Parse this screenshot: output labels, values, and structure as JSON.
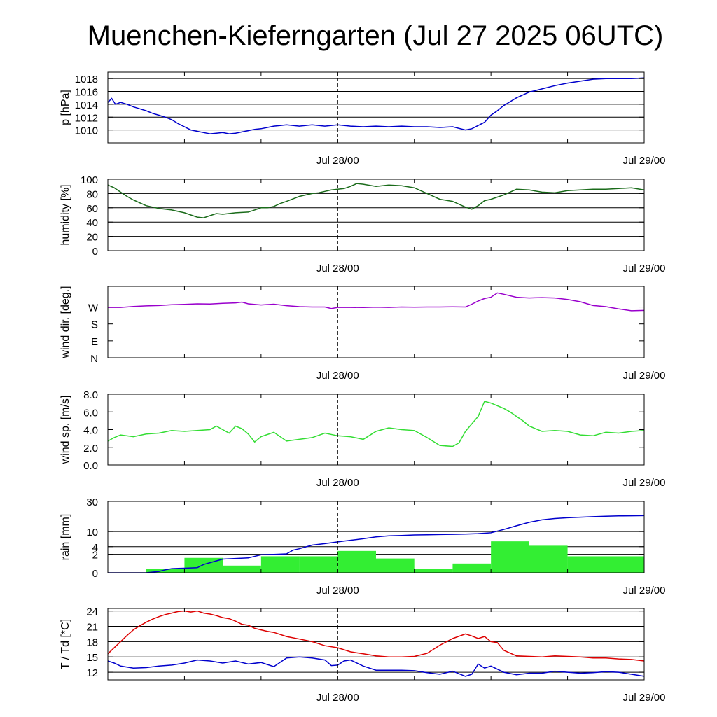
{
  "title": "Muenchen-Kieferngarten (Jul 27 2025 06UTC)",
  "x_tick_labels": [
    "Jul 28/00",
    "Jul 29/00"
  ],
  "x_ticks_hours": [
    18,
    42
  ],
  "x_range_hours": [
    0,
    42
  ],
  "midline_hours": 18,
  "chart_data": [
    {
      "id": "pressure",
      "type": "line",
      "ylabel": "p [hPa]",
      "ylim": [
        1008,
        1019
      ],
      "yticks": [
        1010,
        1012,
        1014,
        1016,
        1018
      ],
      "ytick_labels": [
        "1010",
        "1012",
        "1014",
        "1016",
        "1018"
      ],
      "grid": true,
      "series": [
        {
          "color": "#0000cc",
          "x": [
            0,
            0.3,
            0.6,
            1,
            1.5,
            2,
            2.5,
            3,
            3.5,
            4,
            4.5,
            5,
            5.5,
            6,
            6.5,
            7,
            7.5,
            8,
            8.5,
            9,
            9.5,
            10,
            10.5,
            11,
            11.5,
            12,
            12.5,
            13,
            13.5,
            14,
            15,
            16,
            17,
            18,
            19,
            20,
            21,
            22,
            23,
            24,
            25,
            26,
            27,
            28,
            28.5,
            29,
            29.5,
            30,
            30.5,
            31,
            32,
            33,
            34,
            35,
            36,
            37,
            38,
            39,
            40,
            41,
            42
          ],
          "y": [
            1014.3,
            1014.9,
            1014.0,
            1014.3,
            1014.0,
            1013.6,
            1013.3,
            1013.0,
            1012.6,
            1012.3,
            1012.0,
            1011.6,
            1011.0,
            1010.5,
            1010.0,
            1009.8,
            1009.6,
            1009.4,
            1009.5,
            1009.6,
            1009.4,
            1009.5,
            1009.7,
            1009.9,
            1010.1,
            1010.2,
            1010.4,
            1010.6,
            1010.7,
            1010.8,
            1010.6,
            1010.8,
            1010.6,
            1010.8,
            1010.6,
            1010.5,
            1010.6,
            1010.5,
            1010.6,
            1010.5,
            1010.5,
            1010.4,
            1010.5,
            1010.0,
            1010.2,
            1010.7,
            1011.2,
            1012.3,
            1013.0,
            1013.8,
            1015.0,
            1015.9,
            1016.4,
            1016.9,
            1017.3,
            1017.6,
            1017.9,
            1018.0,
            1018.0,
            1018.0,
            1018.1
          ]
        }
      ]
    },
    {
      "id": "humidity",
      "type": "line",
      "ylabel": "humidity [%]",
      "ylim": [
        0,
        100
      ],
      "yticks": [
        0,
        20,
        40,
        60,
        80,
        100
      ],
      "ytick_labels": [
        "0",
        "20",
        "40",
        "60",
        "80",
        "100"
      ],
      "grid": true,
      "series": [
        {
          "color": "#1a6b1a",
          "x": [
            0,
            0.5,
            1,
            1.5,
            2,
            2.5,
            3,
            4,
            5,
            6,
            6.5,
            7,
            7.5,
            8,
            8.5,
            9,
            10,
            11,
            11.5,
            12,
            12.5,
            13,
            13.5,
            14,
            15,
            16,
            16.5,
            17,
            17.5,
            18,
            18.5,
            19,
            19.5,
            20,
            21,
            22,
            23,
            24,
            25,
            26,
            27,
            28,
            28.5,
            29,
            29.5,
            30,
            30.5,
            31,
            32,
            33,
            34,
            35,
            36,
            37,
            38,
            39,
            40,
            41,
            42
          ],
          "y": [
            92,
            88,
            82,
            76,
            71,
            67,
            63,
            59,
            57,
            53,
            50,
            47,
            46,
            49,
            52,
            51,
            53,
            54,
            57,
            60,
            60,
            62,
            66,
            69,
            76,
            80,
            81,
            83,
            85,
            86,
            87,
            90,
            94,
            93,
            90,
            92,
            91,
            88,
            80,
            72,
            69,
            61,
            58,
            63,
            70,
            72,
            75,
            78,
            86,
            85,
            82,
            81,
            84,
            85,
            86,
            86,
            87,
            88,
            85
          ]
        }
      ]
    },
    {
      "id": "wind_direction",
      "type": "line",
      "ylabel": "wind dir. [deg.]",
      "ylim": [
        0,
        380
      ],
      "yticks": [
        0,
        90,
        180,
        270
      ],
      "ytick_labels": [
        "N",
        "E",
        "S",
        "W"
      ],
      "grid": false,
      "series": [
        {
          "color": "#9900cc",
          "x": [
            0,
            1,
            2,
            3,
            4,
            5,
            6,
            7,
            8,
            9,
            10,
            10.5,
            11,
            12,
            13,
            14,
            15,
            16,
            17,
            17.5,
            18,
            19,
            20,
            21,
            22,
            23,
            24,
            25,
            26,
            27,
            28,
            28.5,
            29,
            29.5,
            30,
            30.5,
            31,
            32,
            33,
            34,
            35,
            36,
            37,
            38,
            39,
            40,
            41,
            42
          ],
          "y": [
            268,
            268,
            273,
            276,
            278,
            282,
            284,
            287,
            286,
            290,
            292,
            296,
            287,
            281,
            285,
            277,
            272,
            270,
            270,
            262,
            268,
            268,
            267,
            269,
            268,
            270,
            269,
            270,
            270,
            271,
            270,
            285,
            302,
            315,
            322,
            345,
            338,
            322,
            318,
            320,
            318,
            310,
            298,
            278,
            272,
            260,
            250,
            252
          ]
        }
      ]
    },
    {
      "id": "wind_speed",
      "type": "line",
      "ylabel": "wind sp. [m/s]",
      "ylim": [
        0,
        8
      ],
      "yticks": [
        0,
        2,
        4,
        6,
        8
      ],
      "ytick_labels": [
        "0.0",
        "2.0",
        "4.0",
        "6.0",
        "8.0"
      ],
      "grid": false,
      "series": [
        {
          "color": "#33dd33",
          "x": [
            0,
            0.5,
            1,
            2,
            3,
            4,
            5,
            6,
            7,
            8,
            8.5,
            9,
            9.5,
            10,
            10.5,
            11,
            11.5,
            12,
            13,
            14,
            15,
            16,
            17,
            18,
            19,
            20,
            21,
            22,
            23,
            24,
            25,
            26,
            27,
            27.5,
            28,
            29,
            29.5,
            30,
            30.5,
            31,
            31.5,
            32,
            32.5,
            33,
            34,
            35,
            36,
            37,
            38,
            39,
            40,
            41,
            42
          ],
          "y": [
            2.7,
            3.1,
            3.4,
            3.2,
            3.5,
            3.6,
            3.9,
            3.8,
            3.9,
            4.0,
            4.4,
            4.0,
            3.6,
            4.4,
            4.1,
            3.5,
            2.6,
            3.2,
            3.7,
            2.7,
            2.9,
            3.1,
            3.6,
            3.3,
            3.2,
            2.9,
            3.8,
            4.2,
            4.0,
            3.9,
            3.1,
            2.2,
            2.1,
            2.5,
            3.8,
            5.5,
            7.2,
            7.0,
            6.7,
            6.4,
            6.0,
            5.5,
            5.0,
            4.4,
            3.8,
            3.9,
            3.8,
            3.4,
            3.3,
            3.7,
            3.6,
            3.8,
            3.9
          ]
        }
      ]
    },
    {
      "id": "rain",
      "type": "bar",
      "ylabel": "rain [mm]",
      "ylim": [
        0,
        30
      ],
      "yticks": [
        0,
        2,
        4,
        10,
        30
      ],
      "ytick_labels": [
        "0",
        "2",
        "4",
        "10",
        "30"
      ],
      "scale": "sqrt",
      "grid": true,
      "bars": {
        "color": "#33ee33",
        "x_start": [
          0,
          3,
          6,
          9,
          12,
          15,
          18,
          21,
          24,
          27,
          30,
          33,
          36,
          39
        ],
        "x_end": [
          3,
          6,
          9,
          12,
          15,
          18,
          21,
          24,
          27,
          30,
          33,
          36,
          39,
          42
        ],
        "values": [
          0,
          0.1,
          1.3,
          0.3,
          1.6,
          1.6,
          2.8,
          1.2,
          0.1,
          0.5,
          5.8,
          4.3,
          1.6,
          1.6
        ]
      },
      "series": [
        {
          "name": "accumulated",
          "color": "#0000cc",
          "x": [
            0,
            3,
            4,
            4.5,
            5,
            6,
            7,
            7.5,
            8,
            9,
            10,
            11,
            12,
            13,
            14,
            14.5,
            15,
            16,
            17,
            18,
            19,
            20,
            21,
            22,
            23,
            24,
            25,
            26,
            27,
            28,
            29,
            30,
            31,
            32,
            33,
            34,
            35,
            36,
            37,
            38,
            39,
            40,
            41,
            42
          ],
          "y": [
            0,
            0,
            0.01,
            0.05,
            0.1,
            0.12,
            0.15,
            0.4,
            0.6,
            1.1,
            1.2,
            1.3,
            1.9,
            2.0,
            2.1,
            3.0,
            3.4,
            4.5,
            5.0,
            5.6,
            6.2,
            6.8,
            7.6,
            8.0,
            8.2,
            8.4,
            8.5,
            8.6,
            8.7,
            8.8,
            9.0,
            9.4,
            11.0,
            13.0,
            15.0,
            16.5,
            17.3,
            17.8,
            18.2,
            18.5,
            18.8,
            19.0,
            19.1,
            19.2
          ]
        }
      ]
    },
    {
      "id": "temperature",
      "type": "line",
      "ylabel": "T / Td [*C]",
      "ylim": [
        10.5,
        24.5
      ],
      "yticks": [
        12,
        15,
        18,
        21,
        24
      ],
      "ytick_labels": [
        "12",
        "15",
        "18",
        "21",
        "24"
      ],
      "grid": true,
      "series": [
        {
          "name": "T",
          "color": "#dd0000",
          "x": [
            0,
            0.5,
            1,
            1.5,
            2,
            2.5,
            3,
            3.5,
            4,
            4.5,
            5,
            5.5,
            6,
            6.5,
            7,
            7.5,
            8,
            8.5,
            9,
            9.5,
            10,
            10.5,
            11,
            11.5,
            12,
            12.5,
            13,
            14,
            15,
            16,
            17,
            18,
            19,
            20,
            21,
            22,
            23,
            24,
            25,
            26,
            27,
            28,
            28.5,
            29,
            29.5,
            30,
            30.5,
            31,
            32,
            33,
            34,
            35,
            36,
            37,
            38,
            39,
            40,
            41,
            42
          ],
          "y": [
            15.6,
            16.8,
            18.0,
            19.2,
            20.3,
            21.1,
            21.8,
            22.4,
            22.9,
            23.3,
            23.6,
            23.9,
            24.0,
            23.8,
            24.0,
            23.6,
            23.4,
            23.1,
            22.7,
            22.5,
            22.0,
            21.4,
            21.2,
            20.6,
            20.3,
            20.0,
            19.8,
            19.0,
            18.5,
            18.0,
            17.2,
            16.8,
            16.0,
            15.6,
            15.2,
            15.0,
            15.0,
            15.1,
            15.7,
            17.3,
            18.6,
            19.5,
            19.1,
            18.6,
            19.0,
            18.0,
            17.8,
            16.3,
            15.2,
            15.1,
            15.0,
            15.2,
            15.1,
            15.0,
            14.8,
            14.8,
            14.6,
            14.5,
            14.2
          ]
        },
        {
          "name": "Td",
          "color": "#0000cc",
          "x": [
            0,
            0.5,
            1,
            2,
            3,
            4,
            5,
            6,
            7,
            8,
            9,
            10,
            11,
            12,
            13,
            14,
            15,
            16,
            17,
            17.5,
            18,
            18.5,
            19,
            20,
            21,
            22,
            23,
            24,
            25,
            26,
            27,
            28,
            28.5,
            29,
            29.5,
            30,
            31,
            32,
            33,
            34,
            35,
            36,
            37,
            38,
            39,
            40,
            41,
            42
          ],
          "y": [
            14.2,
            13.8,
            13.2,
            12.8,
            12.9,
            13.2,
            13.4,
            13.8,
            14.4,
            14.2,
            13.8,
            14.2,
            13.6,
            13.9,
            13.1,
            14.8,
            15.0,
            14.8,
            14.4,
            13.3,
            13.4,
            14.2,
            14.4,
            13.2,
            12.4,
            12.4,
            12.4,
            12.3,
            11.9,
            11.6,
            12.2,
            11.2,
            11.6,
            13.6,
            12.8,
            13.2,
            12.0,
            11.5,
            11.8,
            11.8,
            12.2,
            12.0,
            11.8,
            11.9,
            12.1,
            12.0,
            11.6,
            11.2
          ]
        }
      ]
    }
  ]
}
